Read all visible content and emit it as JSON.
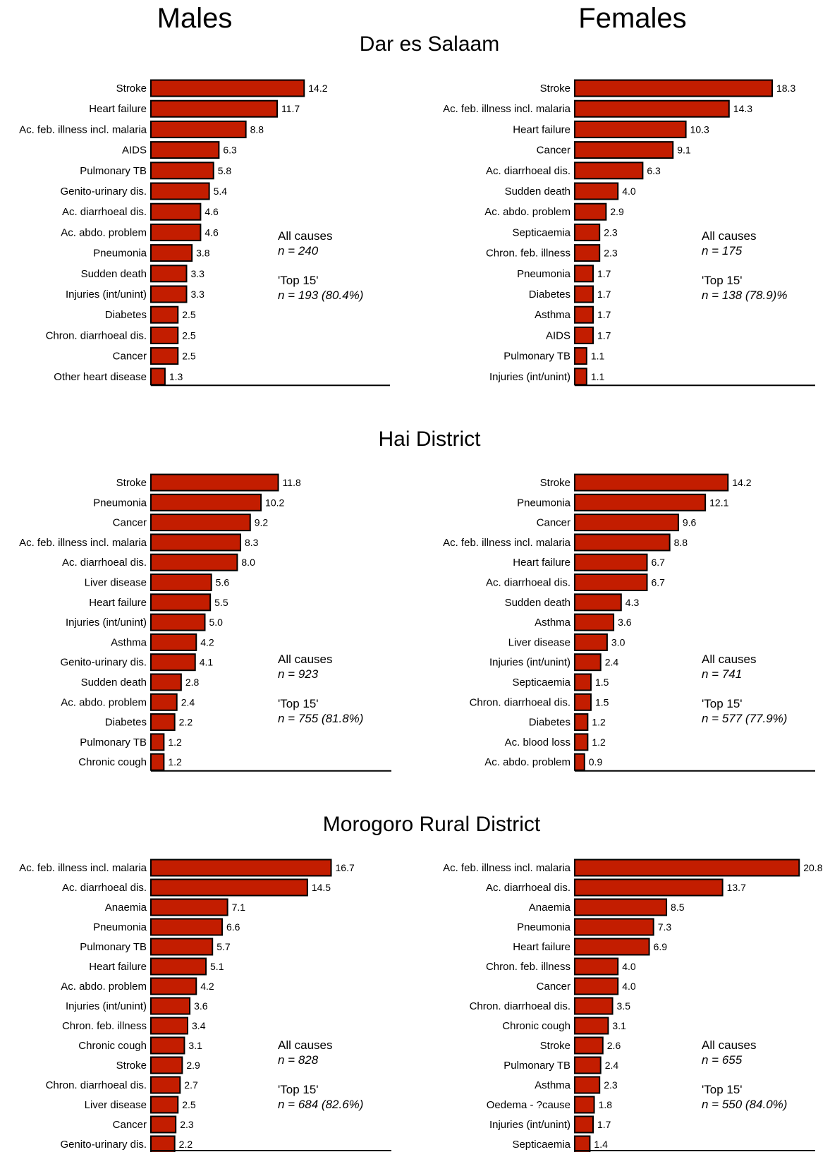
{
  "column_titles": [
    "Males",
    "Females"
  ],
  "regions": [
    "Dar es Salaam",
    "Hai District",
    "Morogoro Rural District"
  ],
  "colors": {
    "bar": "#c31d00",
    "stroke": "#000000"
  },
  "chart_data": [
    {
      "type": "bar",
      "orientation": "horizontal",
      "region": "Dar es Salaam",
      "sex": "Males",
      "categories": [
        "Stroke",
        "Heart failure",
        "Ac. feb. illness incl. malaria",
        "AIDS",
        "Pulmonary TB",
        "Genito-urinary dis.",
        "Ac. diarrhoeal dis.",
        "Ac. abdo. problem",
        "Pneumonia",
        "Sudden death",
        "Injuries (int/unint)",
        "Diabetes",
        "Chron. diarrhoeal dis.",
        "Cancer",
        "Other heart disease"
      ],
      "values": [
        14.2,
        11.7,
        8.8,
        6.3,
        5.8,
        5.4,
        4.6,
        4.6,
        3.8,
        3.3,
        3.3,
        2.5,
        2.5,
        2.5,
        1.3
      ],
      "labels": [
        "14.2",
        "11.7",
        "8.8",
        "6.3",
        "5.8",
        "5.4",
        "4.6",
        "4.6",
        "3.8",
        "3.3",
        "3.3",
        "2.5",
        "2.5",
        "2.5",
        "1.3"
      ],
      "annotation": {
        "line1": "All causes",
        "line2": "n = 240",
        "line3": "'Top 15'",
        "line4": "n = 193 (80.4%)"
      }
    },
    {
      "type": "bar",
      "orientation": "horizontal",
      "region": "Dar es Salaam",
      "sex": "Females",
      "categories": [
        "Stroke",
        "Ac. feb. illness incl. malaria",
        "Heart failure",
        "Cancer",
        "Ac. diarrhoeal dis.",
        "Sudden death",
        "Ac. abdo. problem",
        "Septicaemia",
        "Chron. feb. illness",
        "Pneumonia",
        "Diabetes",
        "Asthma",
        "AIDS",
        "Pulmonary TB",
        "Injuries (int/unint)"
      ],
      "values": [
        18.3,
        14.3,
        10.3,
        9.1,
        6.3,
        4.0,
        2.9,
        2.3,
        2.3,
        1.7,
        1.7,
        1.7,
        1.7,
        1.1,
        1.1
      ],
      "labels": [
        "18.3",
        "14.3",
        "10.3",
        "9.1",
        "6.3",
        "4.0",
        "2.9",
        "2.3",
        "2.3",
        "1.7",
        "1.7",
        "1.7",
        "1.7",
        "1.1",
        "1.1"
      ],
      "annotation": {
        "line1": "All causes",
        "line2": "n = 175",
        "line3": "'Top 15'",
        "line4": "n = 138 (78.9)%"
      }
    },
    {
      "type": "bar",
      "orientation": "horizontal",
      "region": "Hai District",
      "sex": "Males",
      "categories": [
        "Stroke",
        "Pneumonia",
        "Cancer",
        "Ac. feb. illness incl. malaria",
        "Ac. diarrhoeal dis.",
        "Liver disease",
        "Heart failure",
        "Injuries (int/unint)",
        "Asthma",
        "Genito-urinary dis.",
        "Sudden death",
        "Ac. abdo. problem",
        "Diabetes",
        "Pulmonary TB",
        "Chronic cough"
      ],
      "values": [
        11.8,
        10.2,
        9.2,
        8.3,
        8.0,
        5.6,
        5.5,
        5.0,
        4.2,
        4.1,
        2.8,
        2.4,
        2.2,
        1.2,
        1.2
      ],
      "labels": [
        "11.8",
        "10.2",
        "9.2",
        "8.3",
        "8.0",
        "5.6",
        "5.5",
        "5.0",
        "4.2",
        "4.1",
        "2.8",
        "2.4",
        "2.2",
        "1.2",
        "1.2"
      ],
      "annotation": {
        "line1": "All causes",
        "line2": "n = 923",
        "line3": "'Top 15'",
        "line4": "n = 755 (81.8%)"
      }
    },
    {
      "type": "bar",
      "orientation": "horizontal",
      "region": "Hai District",
      "sex": "Females",
      "categories": [
        "Stroke",
        "Pneumonia",
        "Cancer",
        "Ac. feb. illness incl. malaria",
        "Heart failure",
        "Ac. diarrhoeal dis.",
        "Sudden death",
        "Asthma",
        "Liver disease",
        "Injuries (int/unint)",
        "Septicaemia",
        "Chron. diarrhoeal dis.",
        "Diabetes",
        "Ac. blood loss",
        "Ac. abdo. problem"
      ],
      "values": [
        14.2,
        12.1,
        9.6,
        8.8,
        6.7,
        6.7,
        4.3,
        3.6,
        3.0,
        2.4,
        1.5,
        1.5,
        1.2,
        1.2,
        0.9
      ],
      "labels": [
        "14.2",
        "12.1",
        "9.6",
        "8.8",
        "6.7",
        "6.7",
        "4.3",
        "3.6",
        "3.0",
        "2.4",
        "1.5",
        "1.5",
        "1.2",
        "1.2",
        "0.9"
      ],
      "annotation": {
        "line1": "All causes",
        "line2": "n = 741",
        "line3": "'Top 15'",
        "line4": "n = 577 (77.9%)"
      }
    },
    {
      "type": "bar",
      "orientation": "horizontal",
      "region": "Morogoro Rural District",
      "sex": "Males",
      "categories": [
        "Ac. feb. illness incl. malaria",
        "Ac. diarrhoeal dis.",
        "Anaemia",
        "Pneumonia",
        "Pulmonary TB",
        "Heart failure",
        "Ac. abdo. problem",
        "Injuries (int/unint)",
        "Chron. feb. illness",
        "Chronic cough",
        "Stroke",
        "Chron. diarrhoeal dis.",
        "Liver disease",
        "Cancer",
        "Genito-urinary dis."
      ],
      "values": [
        16.7,
        14.5,
        7.1,
        6.6,
        5.7,
        5.1,
        4.2,
        3.6,
        3.4,
        3.1,
        2.9,
        2.7,
        2.5,
        2.3,
        2.2
      ],
      "labels": [
        "16.7",
        "14.5",
        "7.1",
        "6.6",
        "5.7",
        "5.1",
        "4.2",
        "3.6",
        "3.4",
        "3.1",
        "2.9",
        "2.7",
        "2.5",
        "2.3",
        "2.2"
      ],
      "annotation": {
        "line1": "All causes",
        "line2": "n = 828",
        "line3": "'Top 15'",
        "line4": "n = 684 (82.6%)"
      }
    },
    {
      "type": "bar",
      "orientation": "horizontal",
      "region": "Morogoro Rural District",
      "sex": "Females",
      "categories": [
        "Ac. feb. illness incl. malaria",
        "Ac. diarrhoeal dis.",
        "Anaemia",
        "Pneumonia",
        "Heart failure",
        "Chron. feb. illness",
        "Cancer",
        "Chron. diarrhoeal dis.",
        "Chronic cough",
        "Stroke",
        "Pulmonary TB",
        "Asthma",
        "Oedema - ?cause",
        "Injuries (int/unint)",
        "Septicaemia"
      ],
      "values": [
        20.8,
        13.7,
        8.5,
        7.3,
        6.9,
        4.0,
        4.0,
        3.5,
        3.1,
        2.6,
        2.4,
        2.3,
        1.8,
        1.7,
        1.4
      ],
      "labels": [
        "20.8",
        "13.7",
        "8.5",
        "7.3",
        "6.9",
        "4.0",
        "4.0",
        "3.5",
        "3.1",
        "2.6",
        "2.4",
        "2.3",
        "1.8",
        "1.7",
        "1.4"
      ],
      "annotation": {
        "line1": "All causes",
        "line2": "n = 655",
        "line3": "'Top 15'",
        "line4": "n = 550 (84.0%)"
      }
    }
  ]
}
